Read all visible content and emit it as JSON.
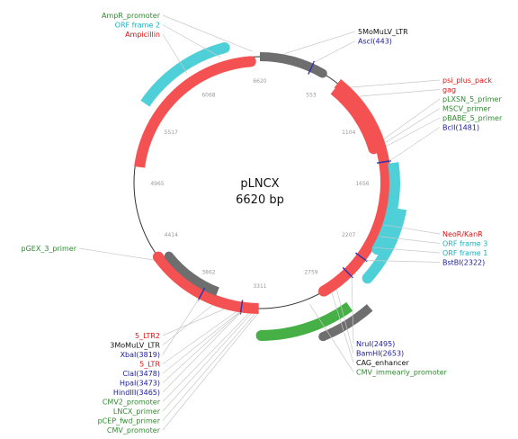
{
  "map": {
    "name": "pLNCX",
    "length_text": "6620 bp",
    "total_bp": 6620
  },
  "colors": {
    "red": "#f45252",
    "cyan": "#4fd0d8",
    "gray": "#6e6e6e",
    "green_feature": "#46b046",
    "green_label": "#2e8b2e",
    "red_label": "#dd1111",
    "cyan_label": "#18b0c0",
    "blue_label": "#1a1a9a",
    "black_label": "#111111",
    "site_mark": "#3333aa",
    "leader": "#c8c8c8",
    "backbone": "#333333",
    "tick_text": "#999999"
  },
  "ticks": [
    "6620",
    "553",
    "1104",
    "1656",
    "2207",
    "2759",
    "3311",
    "3862",
    "4414",
    "4965",
    "5517",
    "6068"
  ],
  "features": [
    {
      "id": "5momulv-ltr",
      "type": "gray",
      "start": 0,
      "end": 550,
      "ring": 0
    },
    {
      "id": "psi-plus-pack",
      "type": "red",
      "start": 700,
      "end": 2250,
      "ring": 0
    },
    {
      "id": "gag",
      "type": "red",
      "start": 710,
      "end": 1350,
      "ring": -8
    },
    {
      "id": "neo-kanr",
      "type": "red",
      "start": 1750,
      "end": 2750,
      "ring": 0
    },
    {
      "id": "orf-frame-3",
      "type": "cyan",
      "start": 1500,
      "end": 2200,
      "ring": 10
    },
    {
      "id": "orf-frame-1",
      "type": "cyan",
      "start": 1850,
      "end": 2420,
      "ring": 20
    },
    {
      "id": "lncx-insert",
      "type": "green_feature",
      "start": 2650,
      "end": 3300,
      "ring": 30
    },
    {
      "id": "cmv-enhancer-block",
      "type": "gray",
      "start": 2550,
      "end": 2900,
      "ring": 45
    },
    {
      "id": "5-ltr2",
      "type": "red",
      "start": 3320,
      "end": 4300,
      "ring": 0
    },
    {
      "id": "3momulv-ltr",
      "type": "gray",
      "start": 3700,
      "end": 4250,
      "ring": -10
    },
    {
      "id": "ampicillin",
      "type": "red",
      "start": 5100,
      "end": 6540,
      "ring": -5
    },
    {
      "id": "orf-frame-2",
      "type": "cyan",
      "start": 5600,
      "end": 6350,
      "ring": 15
    }
  ],
  "labels_right_top": [
    {
      "text": "5MoMuLV_LTR",
      "color_key": "black_label",
      "pos": 200
    },
    {
      "text": "AscI(443)",
      "color_key": "blue_label",
      "pos": 443
    }
  ],
  "labels_right_mid": [
    {
      "text": "psi_plus_pack",
      "color_key": "red_label",
      "pos": 800
    },
    {
      "text": "gag",
      "color_key": "red_label",
      "pos": 900
    },
    {
      "text": "pLXSN_5_primer",
      "color_key": "green_label",
      "pos": 1300
    },
    {
      "text": "MSCV_primer",
      "color_key": "green_label",
      "pos": 1330
    },
    {
      "text": "pBABE_5_primer",
      "color_key": "green_label",
      "pos": 1360
    },
    {
      "text": "BclI(1481)",
      "color_key": "blue_label",
      "pos": 1481
    }
  ],
  "labels_right_low": [
    {
      "text": "NeoR/KanR",
      "color_key": "red_label",
      "pos": 2000
    },
    {
      "text": "ORF frame 3",
      "color_key": "cyan_label",
      "pos": 2100
    },
    {
      "text": "ORF frame 1",
      "color_key": "cyan_label",
      "pos": 2200
    },
    {
      "text": "BstBI(2322)",
      "color_key": "blue_label",
      "pos": 2322
    }
  ],
  "labels_bottom_right": [
    {
      "text": "NruI(2495)",
      "color_key": "blue_label",
      "pos": 2495
    },
    {
      "text": "BamHI(2653)",
      "color_key": "blue_label",
      "pos": 2653
    },
    {
      "text": "CAG_enhancer",
      "color_key": "black_label",
      "pos": 2700
    },
    {
      "text": "CMV_immearly_promoter",
      "color_key": "green_label",
      "pos": 2900
    }
  ],
  "labels_bottom_left": [
    {
      "text": "5_LTR2",
      "color_key": "red_label",
      "pos": 3600
    },
    {
      "text": "3MoMuLV_LTR",
      "color_key": "black_label",
      "pos": 3700
    },
    {
      "text": "XbaI(3819)",
      "color_key": "blue_label",
      "pos": 3819
    },
    {
      "text": "5_LTR",
      "color_key": "red_label",
      "pos": 3500
    },
    {
      "text": "ClaI(3478)",
      "color_key": "blue_label",
      "pos": 3478
    },
    {
      "text": "HpaI(3473)",
      "color_key": "blue_label",
      "pos": 3473
    },
    {
      "text": "HindIII(3465)",
      "color_key": "blue_label",
      "pos": 3465
    },
    {
      "text": "CMV2_promoter",
      "color_key": "green_label",
      "pos": 3400
    },
    {
      "text": "LNCX_primer",
      "color_key": "green_label",
      "pos": 3380
    },
    {
      "text": "pCEP_fwd_primer",
      "color_key": "green_label",
      "pos": 3350
    },
    {
      "text": "CMV_promoter",
      "color_key": "green_label",
      "pos": 3330
    }
  ],
  "labels_top_left": [
    {
      "text": "AmpR_promoter",
      "color_key": "green_label",
      "pos": 6560
    },
    {
      "text": "ORF frame 2",
      "color_key": "cyan_label",
      "pos": 6300
    },
    {
      "text": "Ampicillin",
      "color_key": "red_label",
      "pos": 6000
    }
  ],
  "labels_left": [
    {
      "text": "pGEX_3_primer",
      "color_key": "green_label",
      "pos": 4300
    }
  ]
}
